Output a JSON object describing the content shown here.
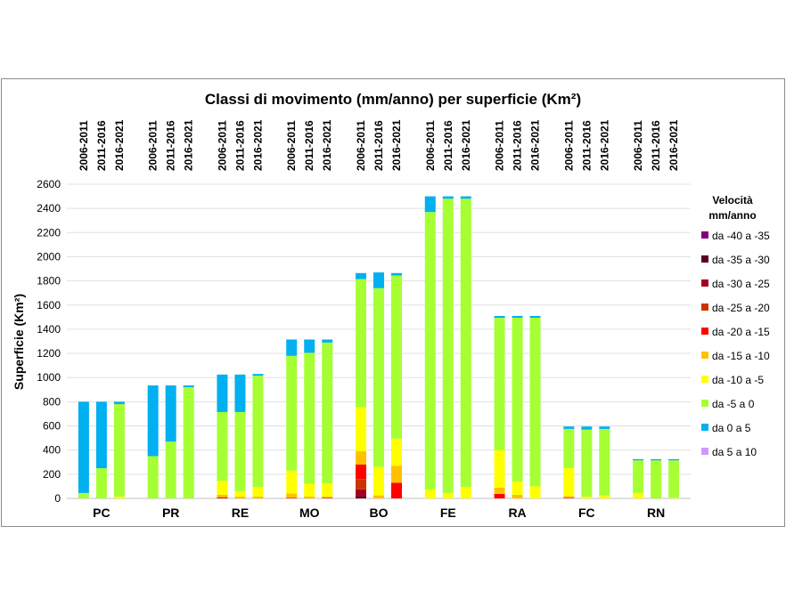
{
  "chart_data": {
    "type": "bar",
    "stacked": true,
    "title": "Classi di movimento (mm/anno) per superficie (Km²)",
    "ylabel": "Superficie (Km²)",
    "xlabel": "",
    "ylim": [
      0,
      2600
    ],
    "yticks": [
      0,
      200,
      400,
      600,
      800,
      1000,
      1200,
      1400,
      1600,
      1800,
      2000,
      2200,
      2400,
      2600
    ],
    "grid": true,
    "groups": [
      "PC",
      "PR",
      "RE",
      "MO",
      "BO",
      "FE",
      "RA",
      "FC",
      "RN"
    ],
    "periods": [
      "2006-2011",
      "2011-2016",
      "2016-2021"
    ],
    "legend_title": "Velocità mm/anno",
    "legend_position": "right",
    "series": [
      {
        "name": "da -40 a -35",
        "color": "#800080",
        "values": [
          0,
          0,
          0,
          0,
          0,
          0,
          0,
          0,
          0,
          0,
          0,
          0,
          0,
          0,
          0,
          0,
          0,
          0,
          0,
          0,
          0,
          0,
          0,
          0,
          0,
          0,
          0
        ]
      },
      {
        "name": "da -35 a -30",
        "color": "#5c0022",
        "values": [
          0,
          0,
          0,
          0,
          0,
          0,
          0,
          0,
          0,
          0,
          0,
          0,
          15,
          0,
          0,
          0,
          0,
          0,
          0,
          0,
          0,
          0,
          0,
          0,
          0,
          0,
          0
        ]
      },
      {
        "name": "da -30 a -25",
        "color": "#a50021",
        "values": [
          0,
          0,
          0,
          0,
          0,
          0,
          0,
          0,
          0,
          0,
          0,
          0,
          60,
          0,
          0,
          0,
          0,
          0,
          0,
          0,
          0,
          0,
          0,
          0,
          0,
          0,
          0
        ]
      },
      {
        "name": "da -25 a -20",
        "color": "#cc3300",
        "values": [
          0,
          0,
          0,
          0,
          0,
          0,
          10,
          0,
          0,
          0,
          0,
          0,
          85,
          0,
          0,
          0,
          0,
          0,
          0,
          0,
          0,
          0,
          0,
          0,
          0,
          0,
          0
        ]
      },
      {
        "name": "da -20 a -15",
        "color": "#ff0000",
        "values": [
          0,
          0,
          0,
          0,
          0,
          0,
          0,
          0,
          0,
          5,
          0,
          5,
          120,
          0,
          130,
          0,
          0,
          0,
          38,
          0,
          0,
          5,
          0,
          0,
          0,
          0,
          0
        ]
      },
      {
        "name": "da -15 a -10",
        "color": "#ffc000",
        "values": [
          0,
          0,
          0,
          0,
          0,
          0,
          20,
          15,
          15,
          35,
          15,
          10,
          110,
          25,
          140,
          0,
          0,
          0,
          52,
          30,
          0,
          15,
          0,
          0,
          0,
          0,
          0
        ]
      },
      {
        "name": "da -10 a -5",
        "color": "#ffff00",
        "values": [
          0,
          0,
          15,
          0,
          0,
          0,
          115,
          45,
          80,
          190,
          105,
          110,
          365,
          235,
          225,
          75,
          45,
          95,
          310,
          110,
          100,
          230,
          15,
          25,
          45,
          0,
          5
        ]
      },
      {
        "name": "da -5 a 0",
        "color": "#a6ff33",
        "values": [
          45,
          250,
          765,
          350,
          470,
          920,
          570,
          655,
          920,
          950,
          1085,
          1165,
          1060,
          1480,
          1350,
          2295,
          2435,
          2385,
          1095,
          1355,
          1395,
          325,
          555,
          550,
          270,
          315,
          310
        ]
      },
      {
        "name": "da 0 a 5",
        "color": "#00b0f0",
        "values": [
          755,
          550,
          20,
          585,
          465,
          15,
          310,
          310,
          15,
          135,
          110,
          25,
          50,
          130,
          20,
          130,
          20,
          20,
          15,
          15,
          15,
          20,
          25,
          20,
          10,
          10,
          10
        ]
      },
      {
        "name": "da 5 a 10",
        "color": "#cc99ff",
        "values": [
          0,
          0,
          0,
          0,
          0,
          0,
          0,
          0,
          0,
          0,
          0,
          0,
          0,
          0,
          0,
          0,
          0,
          0,
          0,
          0,
          0,
          0,
          0,
          0,
          0,
          0,
          0
        ]
      }
    ]
  }
}
